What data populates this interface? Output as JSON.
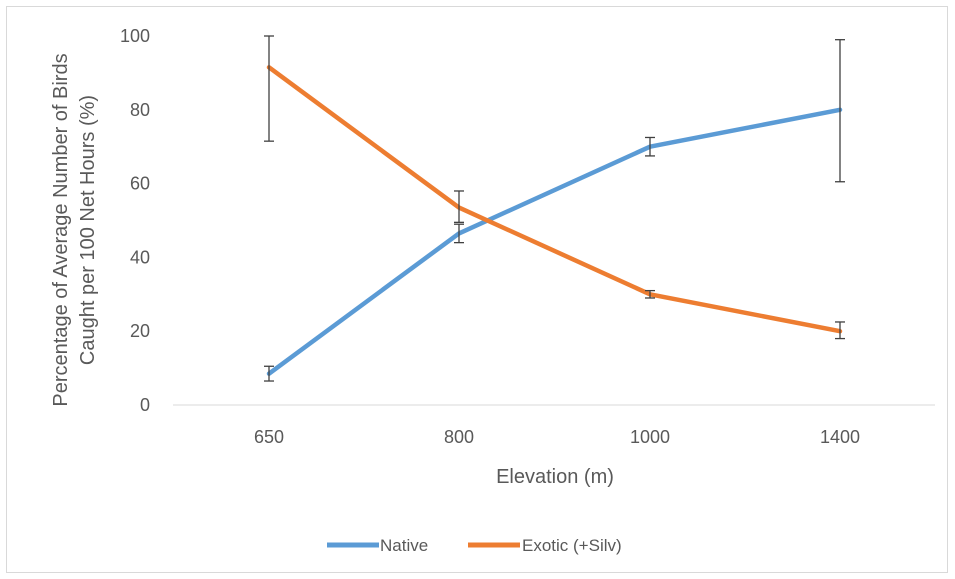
{
  "chart_data": {
    "type": "line",
    "categories": [
      "650",
      "800",
      "1000",
      "1400"
    ],
    "series": [
      {
        "name": "Native",
        "color": "#5b9bd5",
        "values": [
          8.5,
          46.5,
          70,
          80
        ],
        "error": [
          [
            6.5,
            10.5
          ],
          [
            44,
            49
          ],
          [
            67.5,
            72.5
          ],
          [
            60.5,
            99
          ]
        ]
      },
      {
        "name": "Exotic (+Silv)",
        "color": "#ed7d31",
        "values": [
          91.5,
          53.5,
          30,
          20
        ],
        "error": [
          [
            71.5,
            100
          ],
          [
            49.5,
            58
          ],
          [
            29,
            31
          ],
          [
            18,
            22.5
          ]
        ]
      }
    ],
    "xlabel": "Elevation (m)",
    "ylabel_lines": [
      "Percentage of Average Number of Birds",
      "Caught per 100 Net Hours (%)"
    ],
    "ylim": [
      0,
      100
    ],
    "yticks": [
      "0",
      "20",
      "40",
      "60",
      "80",
      "100"
    ],
    "grid": false,
    "legend_position": "bottom",
    "axis_color": "#d9d9d9",
    "text_color": "#595959",
    "errorbar_color": "#404040"
  }
}
